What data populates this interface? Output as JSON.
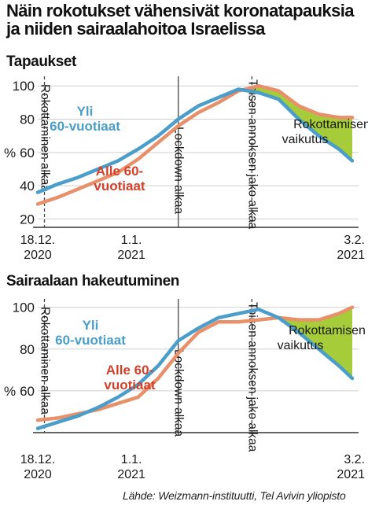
{
  "title": "Näin rokotukset vähensivät koronatapauksia ja niiden sairaalahoitoa Israelissa",
  "source": "Lähde: Weizmann-instituutti, Tel Avivin yliopisto",
  "colors": {
    "over60": "#4a9ec9",
    "under60": "#e8906a",
    "gap": "#a6cc3a"
  },
  "chart_data": [
    {
      "type": "line",
      "title": "Tapaukset",
      "ylabel": "%",
      "ylim": [
        15,
        102
      ],
      "yticks": [
        20,
        40,
        60,
        80,
        100
      ],
      "x_range": [
        "2020-12-18",
        "2021-02-03"
      ],
      "xticks": [
        {
          "date": "2020-12-18",
          "line1": "18.12.",
          "line2": "2020"
        },
        {
          "date": "2021-01-01",
          "line1": "1.1.",
          "line2": "2021"
        },
        {
          "date": "2021-02-03",
          "line1": "3.2.",
          "line2": "2021"
        }
      ],
      "events": [
        {
          "date": "2020-12-19",
          "label": "Rokottaminen alkaa",
          "style": "dashed"
        },
        {
          "date": "2021-01-08",
          "label": "Lockdown alkaa",
          "style": "solid"
        },
        {
          "date": "2021-01-19",
          "label": "Toisen annoksen jako alkaa",
          "style": "dashed"
        }
      ],
      "series": [
        {
          "name": "Yli 60-vuotiaat",
          "label_line1": "Yli",
          "label_line2": "60-vuotiaat",
          "x": [
            "2020-12-18",
            "2020-12-21",
            "2020-12-24",
            "2020-12-27",
            "2020-12-30",
            "2021-01-02",
            "2021-01-05",
            "2021-01-08",
            "2021-01-11",
            "2021-01-14",
            "2021-01-17",
            "2021-01-20",
            "2021-01-23",
            "2021-01-26",
            "2021-01-29",
            "2021-02-01",
            "2021-02-03"
          ],
          "y": [
            36,
            41,
            45,
            50,
            55,
            62,
            70,
            80,
            88,
            93,
            98,
            96,
            92,
            80,
            70,
            62,
            55
          ]
        },
        {
          "name": "Alle 60-vuotiaat",
          "label_line1": "Alle 60-",
          "label_line2": "vuotiaat",
          "x": [
            "2020-12-18",
            "2020-12-21",
            "2020-12-24",
            "2020-12-27",
            "2020-12-30",
            "2021-01-02",
            "2021-01-05",
            "2021-01-08",
            "2021-01-11",
            "2021-01-14",
            "2021-01-17",
            "2021-01-20",
            "2021-01-23",
            "2021-01-26",
            "2021-01-29",
            "2021-02-01",
            "2021-02-03"
          ],
          "y": [
            29,
            33,
            38,
            43,
            48,
            56,
            66,
            76,
            84,
            90,
            97,
            100,
            97,
            88,
            83,
            81,
            81
          ]
        }
      ],
      "annotation": {
        "line1": "Rokottamisen",
        "line2": "vaikutus"
      }
    },
    {
      "type": "line",
      "title": "Sairaalaan hakeutuminen",
      "ylabel": "%",
      "ylim": [
        40,
        101
      ],
      "yticks": [
        60,
        80,
        100
      ],
      "x_range": [
        "2020-12-18",
        "2021-02-03"
      ],
      "xticks": [
        {
          "date": "2020-12-18",
          "line1": "18.12.",
          "line2": "2020"
        },
        {
          "date": "2021-01-01",
          "line1": "1.1.",
          "line2": "2021"
        },
        {
          "date": "2021-02-03",
          "line1": "3.2.",
          "line2": "2021"
        }
      ],
      "events": [
        {
          "date": "2020-12-19",
          "label": "Rokottaminen alkaa",
          "style": "dashed"
        },
        {
          "date": "2021-01-08",
          "label": "Lockdown alkaa",
          "style": "solid"
        },
        {
          "date": "2021-01-19",
          "label": "Toisen annoksen jako alkaa",
          "style": "dashed"
        }
      ],
      "series": [
        {
          "name": "Yli 60-vuotiaat",
          "label_line1": "Yli",
          "label_line2": "60-vuotiaat",
          "x": [
            "2020-12-18",
            "2020-12-21",
            "2020-12-24",
            "2020-12-27",
            "2020-12-30",
            "2021-01-02",
            "2021-01-05",
            "2021-01-08",
            "2021-01-11",
            "2021-01-14",
            "2021-01-17",
            "2021-01-20",
            "2021-01-23",
            "2021-01-26",
            "2021-01-29",
            "2021-02-01",
            "2021-02-03"
          ],
          "y": [
            42,
            45,
            48,
            52,
            57,
            63,
            72,
            84,
            90,
            95,
            97,
            99,
            95,
            88,
            80,
            72,
            66
          ]
        },
        {
          "name": "Alle 60-vuotiaat",
          "label_line1": "Alle 60-",
          "label_line2": "vuotiaat",
          "x": [
            "2020-12-18",
            "2020-12-21",
            "2020-12-24",
            "2020-12-27",
            "2020-12-30",
            "2021-01-02",
            "2021-01-05",
            "2021-01-08",
            "2021-01-11",
            "2021-01-14",
            "2021-01-17",
            "2021-01-20",
            "2021-01-23",
            "2021-01-26",
            "2021-01-29",
            "2021-02-01",
            "2021-02-03"
          ],
          "y": [
            46,
            47,
            49,
            51,
            54,
            57,
            66,
            78,
            88,
            93,
            93,
            94,
            95,
            94,
            94,
            97,
            100
          ]
        }
      ],
      "annotation": {
        "line1": "Rokottamisen",
        "line2": "vaikutus"
      }
    }
  ]
}
